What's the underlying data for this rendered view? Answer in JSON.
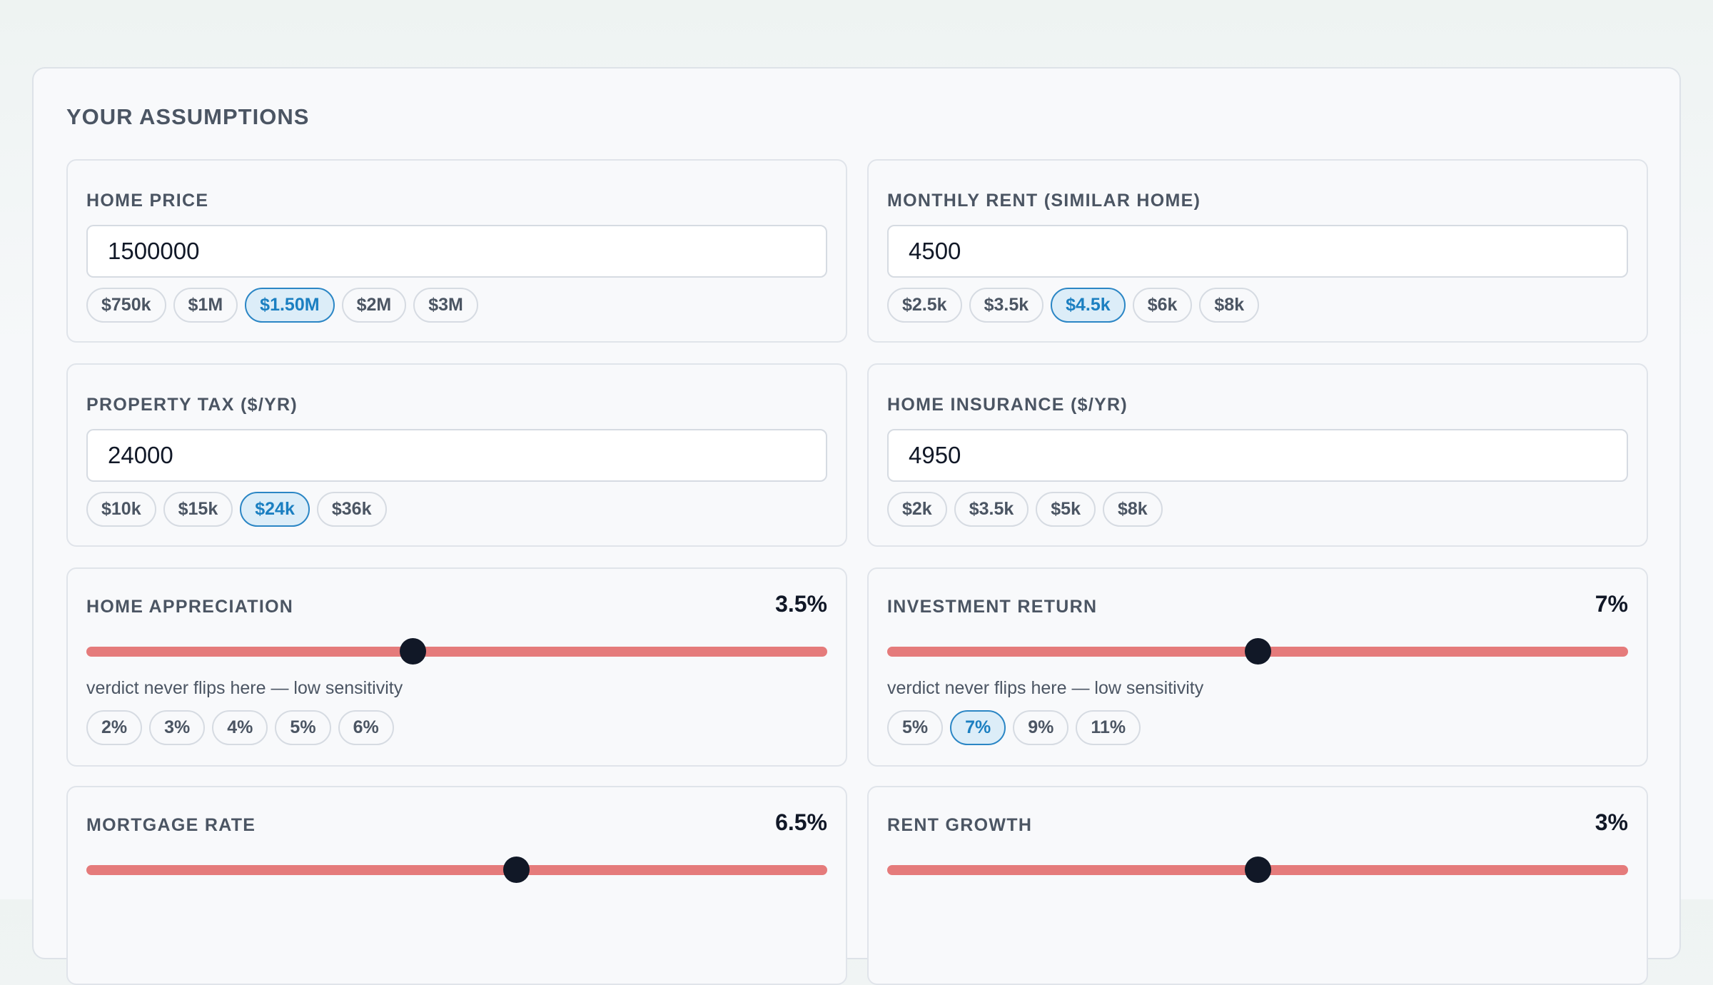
{
  "panel": {
    "title": "YOUR ASSUMPTIONS"
  },
  "home_price": {
    "label": "HOME PRICE",
    "value": "1500000",
    "chips": [
      "$750k",
      "$1M",
      "$1.50M",
      "$2M",
      "$3M"
    ],
    "active_chip": "$1.50M"
  },
  "monthly_rent": {
    "label": "MONTHLY RENT (SIMILAR HOME)",
    "value": "4500",
    "chips": [
      "$2.5k",
      "$3.5k",
      "$4.5k",
      "$6k",
      "$8k"
    ],
    "active_chip": "$4.5k"
  },
  "property_tax": {
    "label": "PROPERTY TAX ($/YR)",
    "value": "24000",
    "chips": [
      "$10k",
      "$15k",
      "$24k",
      "$36k"
    ],
    "active_chip": "$24k"
  },
  "home_insurance": {
    "label": "HOME INSURANCE ($/YR)",
    "value": "4950",
    "chips": [
      "$2k",
      "$3.5k",
      "$5k",
      "$8k"
    ],
    "active_chip": ""
  },
  "home_appreciation": {
    "label": "HOME APPRECIATION",
    "value_text": "3.5%",
    "slider_fraction": 0.44,
    "hint": "verdict never flips here — low sensitivity",
    "chips": [
      "2%",
      "3%",
      "4%",
      "5%",
      "6%"
    ],
    "active_chip": ""
  },
  "investment_return": {
    "label": "INVESTMENT RETURN",
    "value_text": "7%",
    "slider_fraction": 0.5,
    "hint": "verdict never flips here — low sensitivity",
    "chips": [
      "5%",
      "7%",
      "9%",
      "11%"
    ],
    "active_chip": "7%"
  },
  "mortgage_rate": {
    "label": "MORTGAGE RATE",
    "value_text": "6.5%",
    "slider_fraction": 0.58
  },
  "rent_growth": {
    "label": "RENT GROWTH",
    "value_text": "3%",
    "slider_fraction": 0.5
  },
  "colors": {
    "accent": "#1b7fc1",
    "active_chip_bg": "#dcedf8",
    "slider_track": "#e57b7b",
    "slider_thumb": "#111827"
  }
}
